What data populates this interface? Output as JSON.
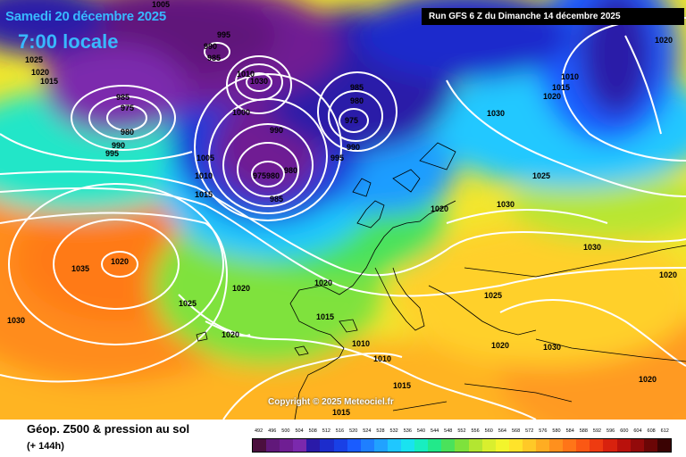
{
  "header": {
    "date": "Samedi 20 décembre 2025",
    "local_time": "7:00 locale",
    "run_info": "Run GFS 6 Z du Dimanche 14 décembre 2025"
  },
  "map": {
    "copyright": "Copyright © 2025 Meteociel.fr",
    "pressure_labels": [
      "1005",
      "995",
      "990",
      "985",
      "1025",
      "1020",
      "1015",
      "985",
      "975",
      "980",
      "990",
      "995",
      "1030",
      "1010",
      "1000",
      "985",
      "980",
      "975",
      "990",
      "995",
      "990",
      "1005",
      "1010",
      "1015",
      "975980",
      "980",
      "985",
      "1030",
      "1020",
      "1025",
      "1010",
      "1015",
      "1020",
      "1030",
      "1030",
      "1025",
      "1020",
      "1035",
      "1030",
      "1020",
      "1025",
      "1020",
      "1020",
      "1020",
      "1015",
      "1020",
      "1010",
      "1010",
      "1015",
      "1015",
      "1020",
      "1030",
      "1020"
    ]
  },
  "footer": {
    "title": "Géop. Z500 & pression au sol",
    "subtitle": "(+ 144h)"
  },
  "legend": {
    "values": [
      "492",
      "496",
      "500",
      "504",
      "508",
      "512",
      "516",
      "520",
      "524",
      "528",
      "532",
      "536",
      "540",
      "544",
      "548",
      "552",
      "556",
      "560",
      "564",
      "568",
      "572",
      "576",
      "580",
      "584",
      "588",
      "592",
      "596",
      "600",
      "604",
      "608",
      "612"
    ],
    "colors": [
      "#4b0f3e",
      "#61187a",
      "#6f1e93",
      "#7b29ad",
      "#2a1aa8",
      "#1c2ccc",
      "#1940e6",
      "#1a5cff",
      "#1f7fff",
      "#21a2ff",
      "#1fc7ff",
      "#19e3f0",
      "#18eec0",
      "#22e98a",
      "#4ae25b",
      "#7ee23c",
      "#b3e631",
      "#d9ef2e",
      "#f3f52c",
      "#ffe32a",
      "#ffc927",
      "#ffad22",
      "#ff901d",
      "#ff7518",
      "#fb5814",
      "#ee3b11",
      "#d8220e",
      "#b9110c",
      "#930a0a",
      "#6b0606",
      "#3a0303"
    ]
  }
}
